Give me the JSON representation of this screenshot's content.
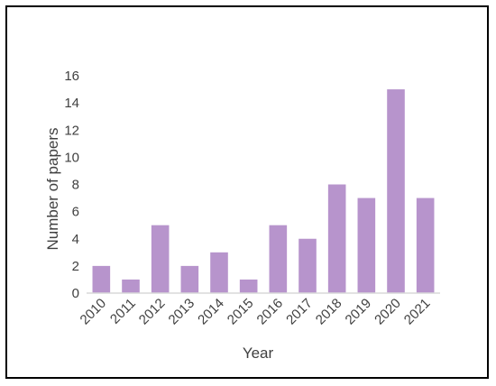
{
  "chart_data": {
    "type": "bar",
    "categories": [
      "2010",
      "2011",
      "2012",
      "2013",
      "2014",
      "2015",
      "2016",
      "2017",
      "2018",
      "2019",
      "2020",
      "2021"
    ],
    "values": [
      2,
      1,
      5,
      2,
      3,
      1,
      5,
      4,
      8,
      7,
      15,
      7
    ],
    "title": "",
    "xlabel": "Year",
    "ylabel": "Number of papers",
    "ylim": [
      0,
      16
    ],
    "yticks": [
      0,
      2,
      4,
      6,
      8,
      10,
      12,
      14,
      16
    ],
    "grid": false,
    "legend": "none",
    "bar_color": "#b794cc",
    "axis_color": "#d9d9d9",
    "text_color": "#404040"
  }
}
